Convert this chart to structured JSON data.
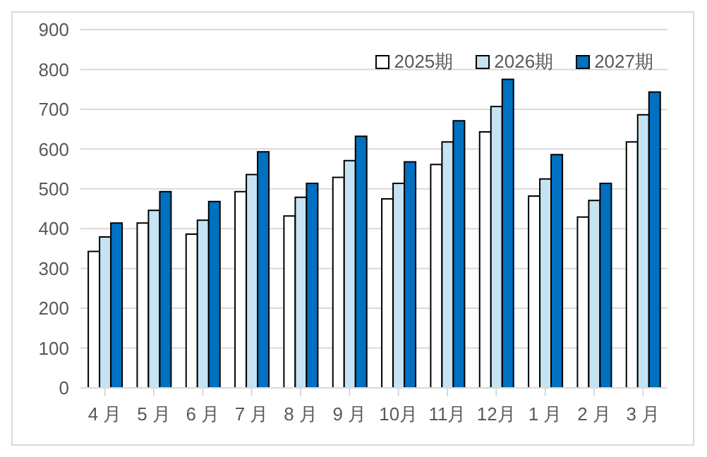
{
  "chart_data": {
    "type": "bar",
    "categories": [
      "4 月",
      "5 月",
      "6 月",
      "7 月",
      "8 月",
      "9 月",
      "10月",
      "11月",
      "12月",
      "1 月",
      "2 月",
      "3 月"
    ],
    "series": [
      {
        "name": "2025期",
        "color": "#ffffff",
        "values": [
          343,
          414,
          386,
          493,
          432,
          529,
          475,
          561,
          643,
          482,
          429,
          618
        ]
      },
      {
        "name": "2026期",
        "color": "#c5e3f3",
        "values": [
          379,
          446,
          421,
          536,
          479,
          571,
          514,
          618,
          707,
          525,
          471,
          686
        ]
      },
      {
        "name": "2027期",
        "color": "#0070c0",
        "values": [
          414,
          493,
          468,
          593,
          514,
          632,
          568,
          671,
          775,
          586,
          514,
          743
        ]
      }
    ],
    "ylim": [
      0,
      900
    ],
    "yticks": [
      0,
      100,
      200,
      300,
      400,
      500,
      600,
      700,
      800,
      900
    ],
    "grid": "y",
    "legend": "top right"
  }
}
